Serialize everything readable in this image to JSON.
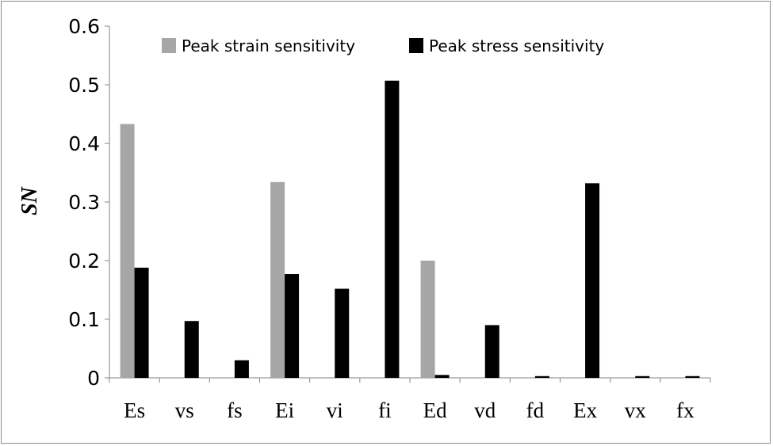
{
  "chart_data": {
    "type": "bar",
    "title": "",
    "xlabel": "",
    "ylabel": "SN",
    "ylim": [
      0,
      0.6
    ],
    "yticks": [
      "0",
      "0.1",
      "0.2",
      "0.3",
      "0.4",
      "0.5",
      "0.6"
    ],
    "grid": false,
    "legend_position": "top",
    "categories": [
      "Es",
      "vs",
      "fs",
      "Ei",
      "vi",
      "fi",
      "Ed",
      "vd",
      "fd",
      "Ex",
      "vx",
      "fx"
    ],
    "series": [
      {
        "name": "Peak strain sensitivity",
        "color": "#a6a6a6",
        "values": [
          0.433,
          0,
          0,
          0.334,
          0,
          0,
          0.2,
          0,
          0,
          0,
          0,
          0
        ]
      },
      {
        "name": "Peak stress sensitivity",
        "color": "#000000",
        "values": [
          0.188,
          0.097,
          0.03,
          0.177,
          0.152,
          0.507,
          0.005,
          0.09,
          0.003,
          0.332,
          0.003,
          0.003
        ]
      }
    ]
  }
}
